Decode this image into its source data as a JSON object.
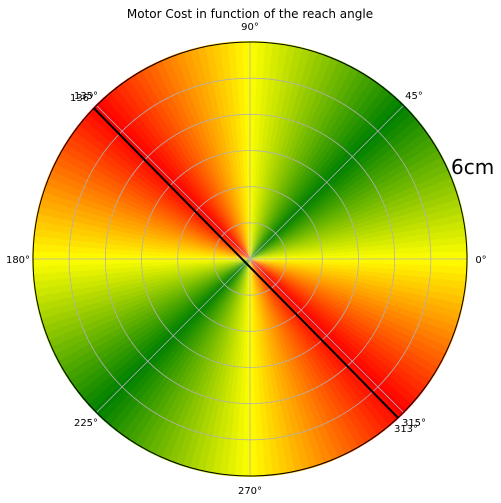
{
  "chart_data": {
    "type": "polar",
    "title": "Motor Cost in function of the reach angle",
    "angle_ticks": [
      "0°",
      "45°",
      "90°",
      "135°",
      "180°",
      "225°",
      "270°",
      "315°"
    ],
    "radial_rings": 6,
    "distance_label": "6cm",
    "cost_line": {
      "angles_deg": [
        136,
        313
      ],
      "labels": [
        "136°",
        "313°"
      ]
    },
    "color_scale": [
      "#008000",
      "#ffff00",
      "#ff0000"
    ],
    "sectors": [
      {
        "angle": 0,
        "cost": 0.5
      },
      {
        "angle": 45,
        "cost": 0.0
      },
      {
        "angle": 90,
        "cost": 0.5
      },
      {
        "angle": 135,
        "cost": 1.0
      },
      {
        "angle": 180,
        "cost": 0.5
      },
      {
        "angle": 225,
        "cost": 0.0
      },
      {
        "angle": 270,
        "cost": 0.5
      },
      {
        "angle": 315,
        "cost": 1.0
      },
      {
        "angle": 360,
        "cost": 0.5
      }
    ],
    "grid": true
  }
}
